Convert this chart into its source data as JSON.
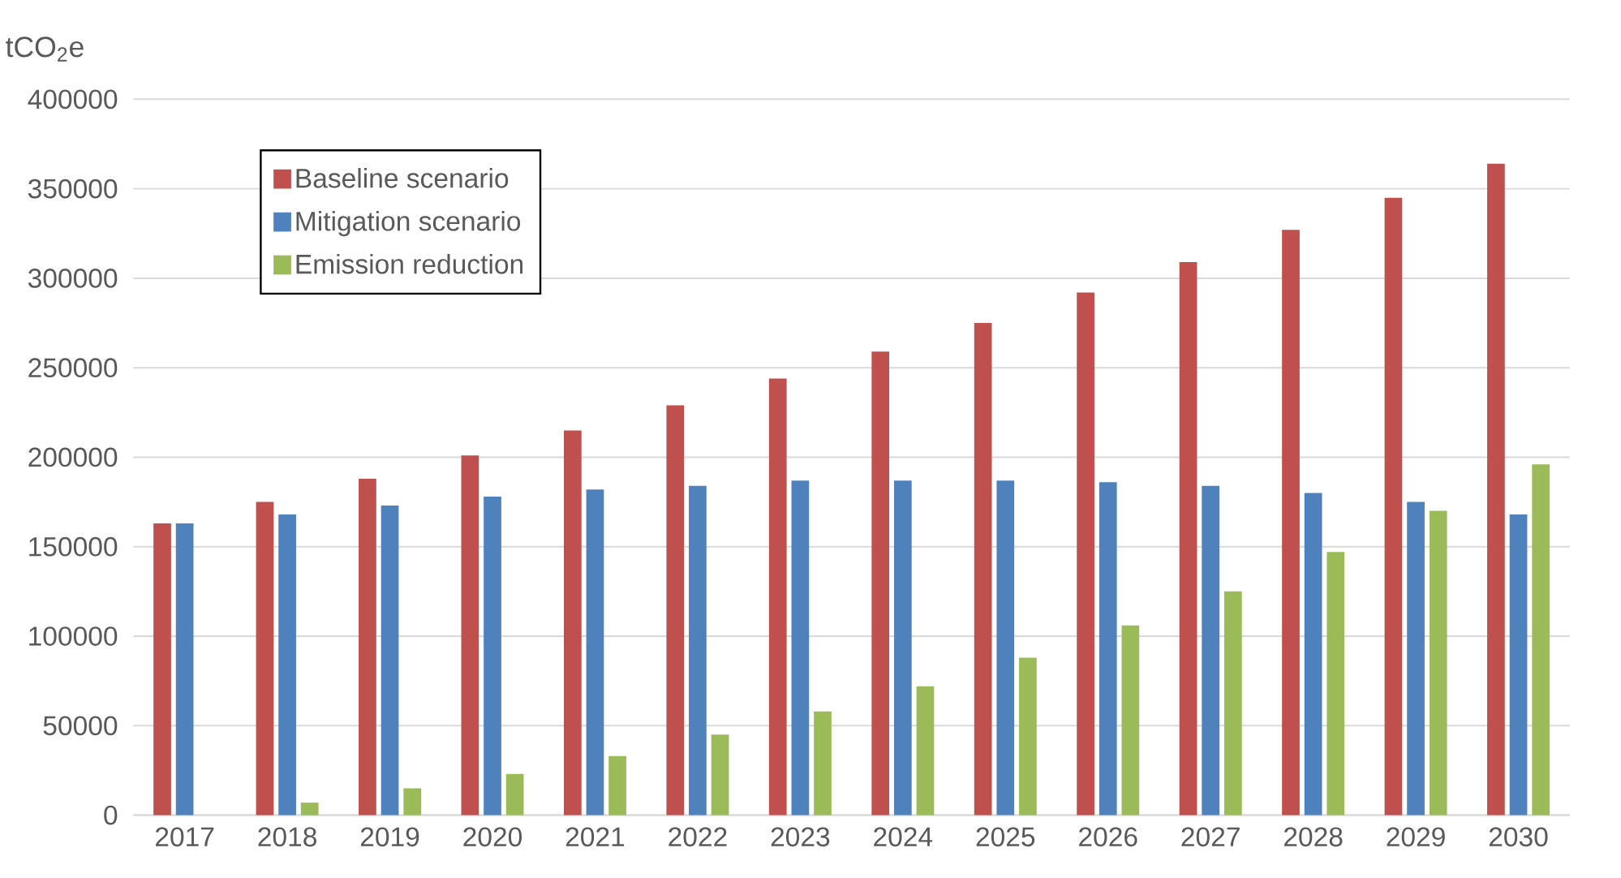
{
  "chart_data": {
    "type": "bar",
    "ylabel": "tCO$_{2}$e",
    "categories": [
      "2017",
      "2018",
      "2019",
      "2020",
      "2021",
      "2022",
      "2023",
      "2024",
      "2025",
      "2026",
      "2027",
      "2028",
      "2029",
      "2030"
    ],
    "series": [
      {
        "name": "Baseline scenario",
        "color": "#c0504d",
        "values": [
          163000,
          175000,
          188000,
          201000,
          215000,
          229000,
          244000,
          259000,
          275000,
          292000,
          309000,
          327000,
          345000,
          364000
        ]
      },
      {
        "name": "Mitigation scenario",
        "color": "#4f81bd",
        "values": [
          163000,
          168000,
          173000,
          178000,
          182000,
          184000,
          187000,
          187000,
          187000,
          186000,
          184000,
          180000,
          175000,
          168000
        ]
      },
      {
        "name": "Emission reduction",
        "color": "#9bbb59",
        "values": [
          0,
          7000,
          15000,
          23000,
          33000,
          45000,
          58000,
          72000,
          88000,
          106000,
          125000,
          147000,
          170000,
          196000
        ]
      }
    ],
    "ylim": [
      0,
      400000
    ],
    "yticks": [
      0,
      50000,
      100000,
      150000,
      200000,
      250000,
      300000,
      350000,
      400000
    ],
    "grid": "y",
    "legend": "top left"
  }
}
